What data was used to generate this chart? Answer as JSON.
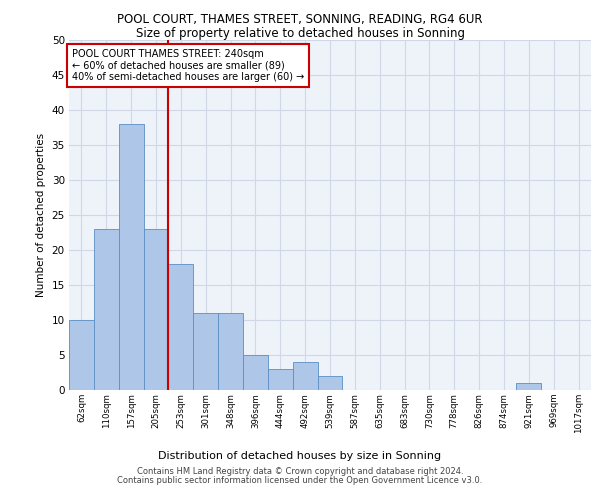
{
  "title1": "POOL COURT, THAMES STREET, SONNING, READING, RG4 6UR",
  "title2": "Size of property relative to detached houses in Sonning",
  "xlabel": "Distribution of detached houses by size in Sonning",
  "ylabel": "Number of detached properties",
  "bin_labels": [
    "62sqm",
    "110sqm",
    "157sqm",
    "205sqm",
    "253sqm",
    "301sqm",
    "348sqm",
    "396sqm",
    "444sqm",
    "492sqm",
    "539sqm",
    "587sqm",
    "635sqm",
    "683sqm",
    "730sqm",
    "778sqm",
    "826sqm",
    "874sqm",
    "921sqm",
    "969sqm",
    "1017sqm"
  ],
  "bin_values": [
    10,
    23,
    38,
    23,
    18,
    11,
    11,
    5,
    3,
    4,
    2,
    0,
    0,
    0,
    0,
    0,
    0,
    0,
    1,
    0,
    0
  ],
  "bar_color": "#aec6e8",
  "bar_edge_color": "#5a8fc4",
  "grid_color": "#d0d8e8",
  "background_color": "#eef2f9",
  "annotation_box_text": "POOL COURT THAMES STREET: 240sqm\n← 60% of detached houses are smaller (89)\n40% of semi-detached houses are larger (60) →",
  "annotation_box_color": "#cc0000",
  "red_line_x": 3.5,
  "ylim": [
    0,
    50
  ],
  "yticks": [
    0,
    5,
    10,
    15,
    20,
    25,
    30,
    35,
    40,
    45,
    50
  ],
  "footer_line1": "Contains HM Land Registry data © Crown copyright and database right 2024.",
  "footer_line2": "Contains public sector information licensed under the Open Government Licence v3.0."
}
